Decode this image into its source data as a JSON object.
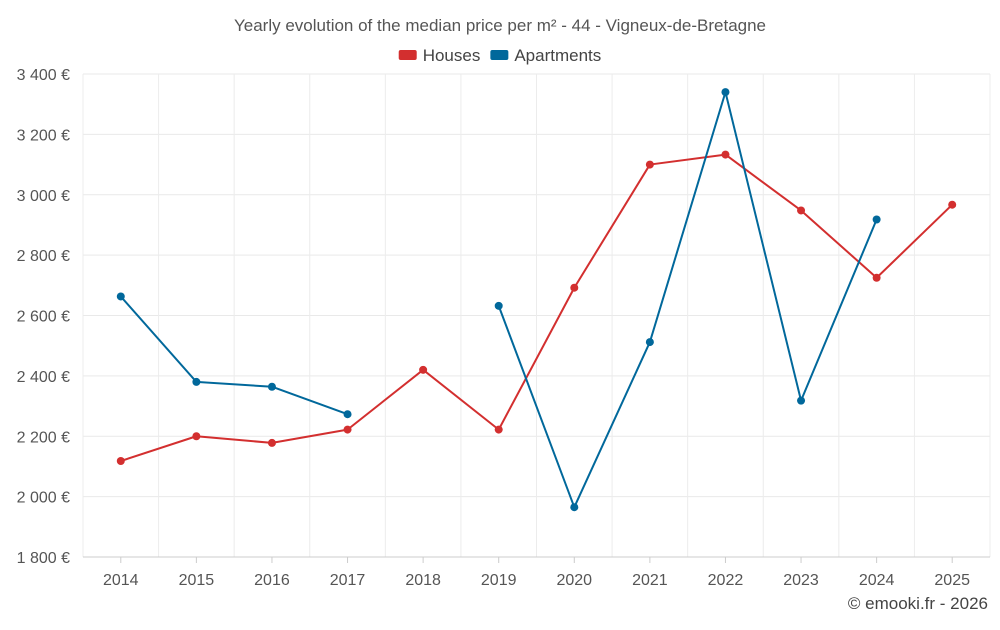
{
  "chart_data": {
    "type": "line",
    "title": "Yearly evolution of the median price per m² - 44 - Vigneux-de-Bretagne",
    "x": [
      "2014",
      "2015",
      "2016",
      "2017",
      "2018",
      "2019",
      "2020",
      "2021",
      "2022",
      "2023",
      "2024",
      "2025"
    ],
    "y_ticks": [
      "1 800 €",
      "2 000 €",
      "2 200 €",
      "2 400 €",
      "2 600 €",
      "2 800 €",
      "3 000 €",
      "3 200 €",
      "3 400 €"
    ],
    "ylim": [
      1800,
      3400
    ],
    "grid": true,
    "legend_position": "top-center",
    "series": [
      {
        "name": "Houses",
        "color": "#d32f2f",
        "values": [
          2118,
          2200,
          2178,
          2222,
          2420,
          2222,
          2692,
          3100,
          3133,
          2948,
          2725,
          2967
        ]
      },
      {
        "name": "Apartments",
        "color": "#01689b",
        "values": [
          2663,
          2380,
          2364,
          2273,
          null,
          2632,
          1965,
          2512,
          3340,
          2318,
          2918,
          null
        ]
      }
    ]
  },
  "footer": {
    "credit": "© emooki.fr - 2026"
  }
}
